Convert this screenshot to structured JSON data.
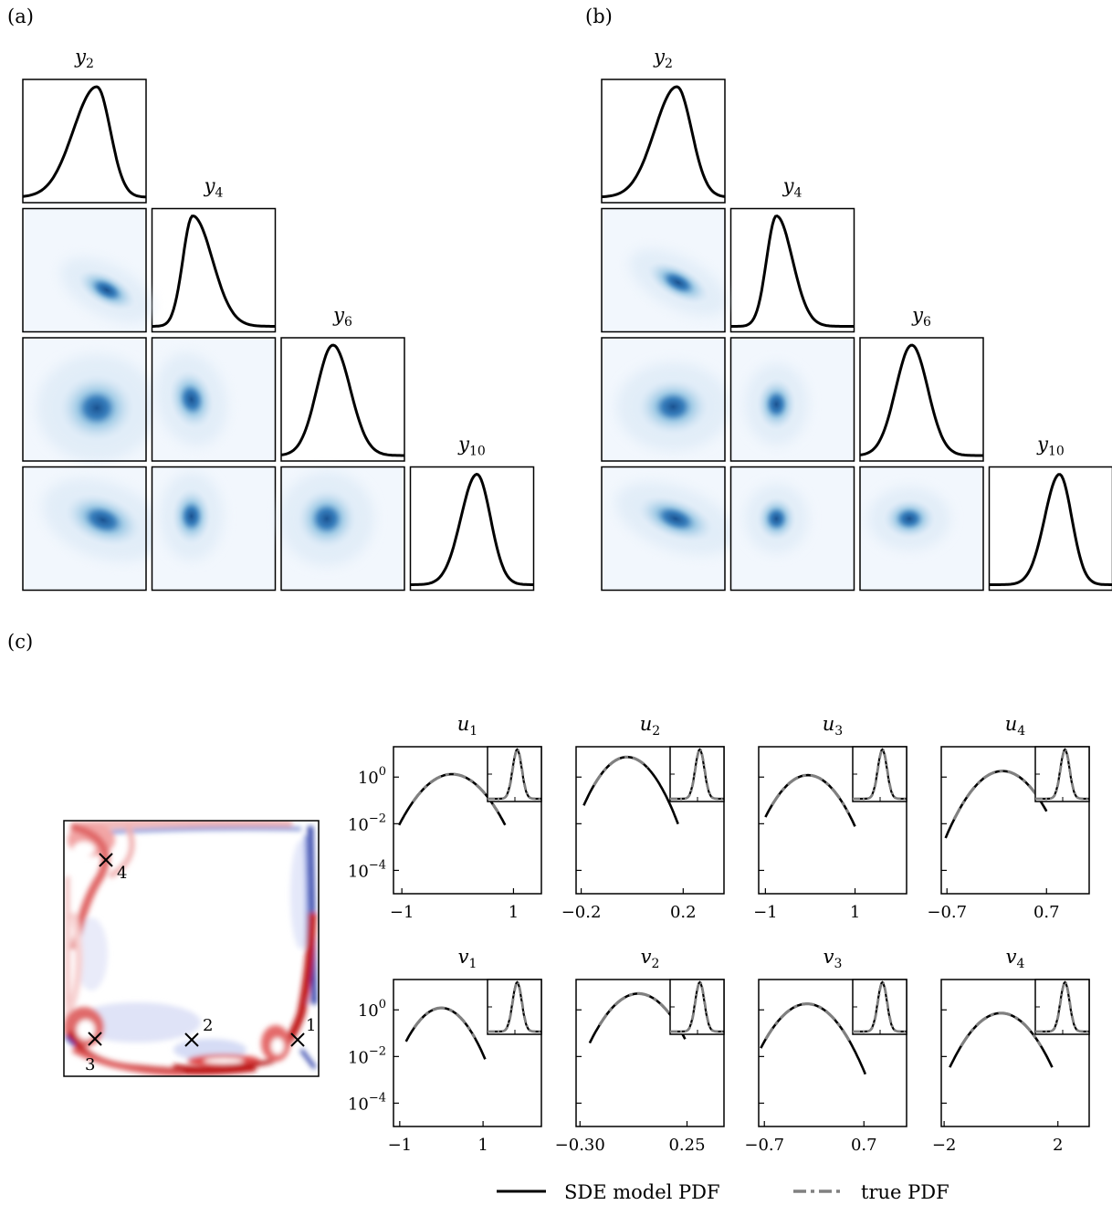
{
  "panels": {
    "a": {
      "label": "(a)"
    },
    "b": {
      "label": "(b)"
    },
    "c": {
      "label": "(c)"
    }
  },
  "corner_plots": {
    "variables": [
      {
        "symbol": "y",
        "sub": "2"
      },
      {
        "symbol": "y",
        "sub": "4"
      },
      {
        "symbol": "y",
        "sub": "6"
      },
      {
        "symbol": "y",
        "sub": "10"
      }
    ],
    "colormap": "Blues"
  },
  "cavity_map": {
    "colormap": [
      "#3b4cc0",
      "#ffffff",
      "#b40426"
    ],
    "probes": [
      {
        "id": "1",
        "label": "1"
      },
      {
        "id": "2",
        "label": "2"
      },
      {
        "id": "3",
        "label": "3"
      },
      {
        "id": "4",
        "label": "4"
      }
    ]
  },
  "pdf_axis": {
    "yscale": "log",
    "ytick_labels": [
      {
        "base": "10",
        "exp": "0"
      },
      {
        "base": "10",
        "exp": "−2"
      },
      {
        "base": "10",
        "exp": "−4"
      }
    ]
  },
  "legend": {
    "sde": "SDE model PDF",
    "true": "true PDF"
  },
  "colors": {
    "sde": "#000000",
    "true": "#808080"
  },
  "chart_data": [
    {
      "type": "line",
      "panel": "a",
      "marginals": [
        {
          "var": "y2",
          "peak": 0.6,
          "width_left": 0.19,
          "width_right": 0.11
        },
        {
          "var": "y4",
          "peak": 0.33,
          "width_left": 0.08,
          "width_right": 0.16
        },
        {
          "var": "y6",
          "peak": 0.42,
          "width_left": 0.13,
          "width_right": 0.14
        },
        {
          "var": "y10",
          "peak": 0.54,
          "width_left": 0.13,
          "width_right": 0.11
        }
      ],
      "joint_densities": [
        {
          "row": "y4",
          "col": "y2",
          "center": [
            0.68,
            0.66
          ],
          "spread": [
            0.16,
            0.08
          ],
          "tilt": 28
        },
        {
          "row": "y6",
          "col": "y2",
          "center": [
            0.6,
            0.57
          ],
          "spread": [
            0.19,
            0.17
          ],
          "tilt": 0
        },
        {
          "row": "y6",
          "col": "y4",
          "center": [
            0.32,
            0.5
          ],
          "spread": [
            0.11,
            0.15
          ],
          "tilt": -15
        },
        {
          "row": "y10",
          "col": "y2",
          "center": [
            0.65,
            0.43
          ],
          "spread": [
            0.2,
            0.12
          ],
          "tilt": 20
        },
        {
          "row": "y10",
          "col": "y4",
          "center": [
            0.32,
            0.4
          ],
          "spread": [
            0.1,
            0.14
          ],
          "tilt": 0
        },
        {
          "row": "y10",
          "col": "y6",
          "center": [
            0.37,
            0.42
          ],
          "spread": [
            0.15,
            0.15
          ],
          "tilt": 0
        }
      ]
    },
    {
      "type": "line",
      "panel": "b",
      "marginals": [
        {
          "var": "y2",
          "peak": 0.61,
          "width_left": 0.18,
          "width_right": 0.12
        },
        {
          "var": "y4",
          "peak": 0.37,
          "width_left": 0.08,
          "width_right": 0.13
        },
        {
          "var": "y6",
          "peak": 0.42,
          "width_left": 0.13,
          "width_right": 0.13
        },
        {
          "var": "y10",
          "peak": 0.57,
          "width_left": 0.12,
          "width_right": 0.1
        }
      ],
      "joint_densities": [
        {
          "row": "y4",
          "col": "y2",
          "center": [
            0.62,
            0.6
          ],
          "spread": [
            0.17,
            0.08
          ],
          "tilt": 28
        },
        {
          "row": "y6",
          "col": "y2",
          "center": [
            0.58,
            0.56
          ],
          "spread": [
            0.18,
            0.14
          ],
          "tilt": 0
        },
        {
          "row": "y6",
          "col": "y4",
          "center": [
            0.37,
            0.54
          ],
          "spread": [
            0.1,
            0.13
          ],
          "tilt": 0
        },
        {
          "row": "y10",
          "col": "y2",
          "center": [
            0.6,
            0.42
          ],
          "spread": [
            0.2,
            0.1
          ],
          "tilt": 20
        },
        {
          "row": "y10",
          "col": "y4",
          "center": [
            0.37,
            0.42
          ],
          "spread": [
            0.1,
            0.11
          ],
          "tilt": 0
        },
        {
          "row": "y10",
          "col": "y6",
          "center": [
            0.4,
            0.42
          ],
          "spread": [
            0.13,
            0.1
          ],
          "tilt": 0
        }
      ]
    },
    {
      "type": "line",
      "panel": "c",
      "series": [
        {
          "name": "SDE model PDF"
        },
        {
          "name": "true PDF"
        }
      ],
      "ylim": [
        1e-05,
        20
      ],
      "plots": [
        {
          "var_symbol": "u",
          "var_sub": "1",
          "xlim": [
            -1.15,
            1.5
          ],
          "xticks": [
            -1,
            1
          ],
          "xtick_labels": [
            "−1",
            "1"
          ],
          "mode": -0.1,
          "sigma": 0.3,
          "sde_range": [
            -1.05,
            0.85
          ],
          "true_range": [
            -0.8,
            0.72
          ]
        },
        {
          "var_symbol": "u",
          "var_sub": "2",
          "xlim": [
            -0.22,
            0.36
          ],
          "xticks": [
            -0.2,
            0.2
          ],
          "xtick_labels": [
            "−0.2",
            "0.2"
          ],
          "mode": -0.02,
          "sigma": 0.055,
          "sde_range": [
            -0.19,
            0.18
          ],
          "true_range": [
            -0.15,
            0.06
          ]
        },
        {
          "var_symbol": "u",
          "var_sub": "3",
          "xlim": [
            -1.15,
            2.15
          ],
          "xticks": [
            -1,
            1
          ],
          "xtick_labels": [
            "−1",
            "1"
          ],
          "mode": -0.05,
          "sigma": 0.33,
          "sde_range": [
            -1.0,
            1.0
          ],
          "true_range": [
            -0.85,
            0.85
          ]
        },
        {
          "var_symbol": "u",
          "var_sub": "4",
          "xlim": [
            -0.78,
            1.3
          ],
          "xticks": [
            -0.7,
            0.7
          ],
          "xtick_labels": [
            "−0.7",
            "0.7"
          ],
          "mode": 0.08,
          "sigma": 0.22,
          "sde_range": [
            -0.72,
            0.7
          ],
          "true_range": [
            -0.6,
            0.55
          ]
        },
        {
          "var_symbol": "v",
          "var_sub": "1",
          "xlim": [
            -1.15,
            2.4
          ],
          "xticks": [
            -1,
            1
          ],
          "xtick_labels": [
            "−1",
            "1"
          ],
          "mode": 0.0,
          "sigma": 0.33,
          "sde_range": [
            -0.85,
            1.05
          ],
          "true_range": [
            -0.65,
            0.8
          ]
        },
        {
          "var_symbol": "v",
          "var_sub": "2",
          "xlim": [
            -0.32,
            0.44
          ],
          "xticks": [
            -0.3,
            0.25
          ],
          "xtick_labels": [
            "−0.30",
            "0.25"
          ],
          "mode": 0.0,
          "sigma": 0.08,
          "sde_range": [
            -0.25,
            0.24
          ],
          "true_range": [
            -0.2,
            0.2
          ]
        },
        {
          "var_symbol": "v",
          "var_sub": "3",
          "xlim": [
            -0.78,
            1.3
          ],
          "xticks": [
            -0.7,
            0.7
          ],
          "xtick_labels": [
            "−0.7",
            "0.7"
          ],
          "mode": -0.1,
          "sigma": 0.22,
          "sde_range": [
            -0.75,
            0.72
          ],
          "true_range": [
            -0.68,
            0.5
          ]
        },
        {
          "var_symbol": "v",
          "var_sub": "4",
          "xlim": [
            -2.1,
            3.1
          ],
          "xticks": [
            -2,
            2
          ],
          "xtick_labels": [
            "−2",
            "2"
          ],
          "mode": 0.0,
          "sigma": 0.55,
          "sde_range": [
            -1.8,
            1.8
          ],
          "true_range": [
            -1.4,
            1.4
          ]
        }
      ]
    }
  ]
}
